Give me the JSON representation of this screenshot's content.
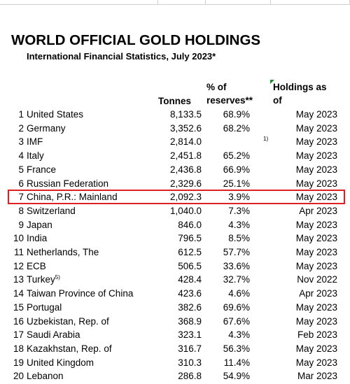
{
  "title": "WORLD OFFICIAL GOLD HOLDINGS",
  "subtitle": "International Financial Statistics, July 2023*",
  "headers": {
    "tonnes": "Tonnes",
    "pct_line1": "% of",
    "pct_line2": "reserves**",
    "holdings_line1": "Holdings as",
    "holdings_line2": "of"
  },
  "colors": {
    "highlight": "#e02020",
    "flag": "#1a8a2a"
  },
  "highlighted_rank": 7,
  "rows": [
    {
      "rank": "1",
      "country": "United States",
      "sup": "",
      "tonnes": "8,133.5",
      "pct": "68.9%",
      "note": "",
      "date": "May 2023"
    },
    {
      "rank": "2",
      "country": "Germany",
      "sup": "",
      "tonnes": "3,352.6",
      "pct": "68.2%",
      "note": "",
      "date": "May 2023"
    },
    {
      "rank": "3",
      "country": "IMF",
      "sup": "",
      "tonnes": "2,814.0",
      "pct": "",
      "note": "1)",
      "date": "May 2023"
    },
    {
      "rank": "4",
      "country": "Italy",
      "sup": "",
      "tonnes": "2,451.8",
      "pct": "65.2%",
      "note": "",
      "date": "May 2023"
    },
    {
      "rank": "5",
      "country": "France",
      "sup": "",
      "tonnes": "2,436.8",
      "pct": "66.9%",
      "note": "",
      "date": "May 2023"
    },
    {
      "rank": "6",
      "country": "Russian Federation",
      "sup": "",
      "tonnes": "2,329.6",
      "pct": "25.1%",
      "note": "",
      "date": "May 2023"
    },
    {
      "rank": "7",
      "country": "China, P.R.: Mainland",
      "sup": "",
      "tonnes": "2,092.3",
      "pct": "3.9%",
      "note": "",
      "date": "May 2023"
    },
    {
      "rank": "8",
      "country": "Switzerland",
      "sup": "",
      "tonnes": "1,040.0",
      "pct": "7.3%",
      "note": "",
      "date": "Apr 2023"
    },
    {
      "rank": "9",
      "country": "Japan",
      "sup": "",
      "tonnes": "846.0",
      "pct": "4.3%",
      "note": "",
      "date": "May 2023"
    },
    {
      "rank": "10",
      "country": "India",
      "sup": "",
      "tonnes": "796.5",
      "pct": "8.5%",
      "note": "",
      "date": "May 2023"
    },
    {
      "rank": "11",
      "country": "Netherlands, The",
      "sup": "",
      "tonnes": "612.5",
      "pct": "57.7%",
      "note": "",
      "date": "May 2023"
    },
    {
      "rank": "12",
      "country": "ECB",
      "sup": "",
      "tonnes": "506.5",
      "pct": "33.6%",
      "note": "",
      "date": "May 2023"
    },
    {
      "rank": "13",
      "country": "Turkey",
      "sup": "5)",
      "tonnes": "428.4",
      "pct": "32.7%",
      "note": "",
      "date": "Nov 2022"
    },
    {
      "rank": "14",
      "country": "Taiwan Province of China",
      "sup": "",
      "tonnes": "423.6",
      "pct": "4.6%",
      "note": "",
      "date": "Apr 2023"
    },
    {
      "rank": "15",
      "country": "Portugal",
      "sup": "",
      "tonnes": "382.6",
      "pct": "69.6%",
      "note": "",
      "date": "May 2023"
    },
    {
      "rank": "16",
      "country": "Uzbekistan, Rep. of",
      "sup": "",
      "tonnes": "368.9",
      "pct": "67.6%",
      "note": "",
      "date": "May 2023"
    },
    {
      "rank": "17",
      "country": "Saudi Arabia",
      "sup": "",
      "tonnes": "323.1",
      "pct": "4.3%",
      "note": "",
      "date": "Feb 2023"
    },
    {
      "rank": "18",
      "country": "Kazakhstan, Rep. of",
      "sup": "",
      "tonnes": "316.7",
      "pct": "56.3%",
      "note": "",
      "date": "May 2023"
    },
    {
      "rank": "19",
      "country": "United Kingdom",
      "sup": "",
      "tonnes": "310.3",
      "pct": "11.4%",
      "note": "",
      "date": "May 2023"
    },
    {
      "rank": "20",
      "country": "Lebanon",
      "sup": "",
      "tonnes": "286.8",
      "pct": "54.9%",
      "note": "",
      "date": "Mar 2023"
    }
  ]
}
